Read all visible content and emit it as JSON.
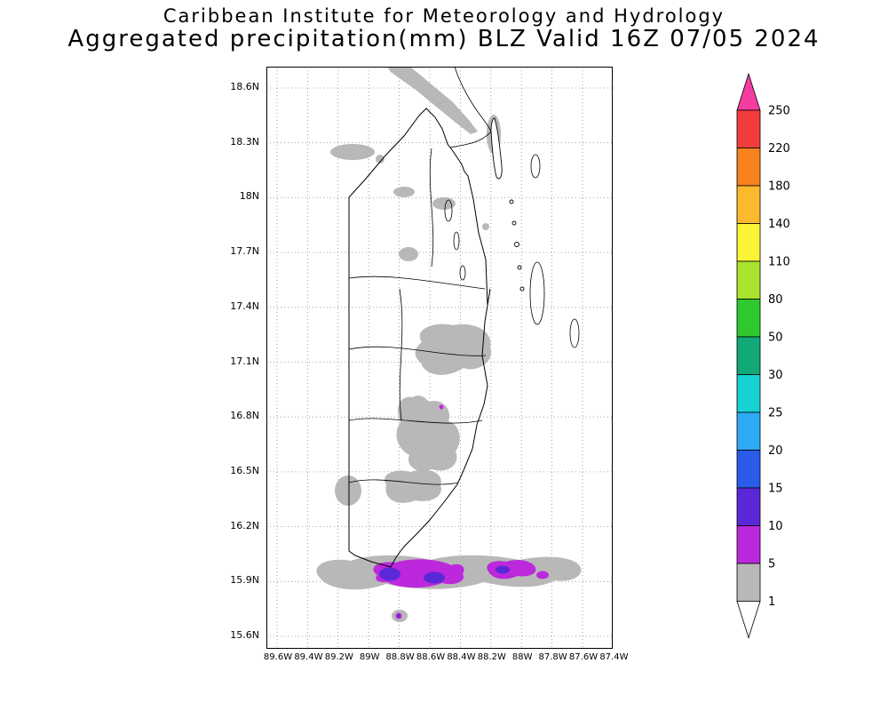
{
  "title": {
    "line1": "Caribbean Institute for Meteorology and Hydrology",
    "line2": "Aggregated precipitation(mm) BLZ Valid 16Z 07/05 2024"
  },
  "map": {
    "lat_labels": [
      "18.6N",
      "18.3N",
      "18N",
      "17.7N",
      "17.4N",
      "17.1N",
      "16.8N",
      "16.5N",
      "16.2N",
      "15.9N",
      "15.6N"
    ],
    "lon_labels": [
      "89.6W",
      "89.4W",
      "89.2W",
      "89W",
      "88.8W",
      "88.6W",
      "88.4W",
      "88.2W",
      "88W",
      "87.8W",
      "87.6W",
      "87.4W"
    ]
  },
  "colorbar": {
    "labels": [
      "250",
      "220",
      "180",
      "140",
      "110",
      "80",
      "50",
      "30",
      "25",
      "20",
      "15",
      "10",
      "5",
      "1"
    ],
    "colors": [
      "#F23C3C",
      "#F8821E",
      "#FCB92E",
      "#FBF337",
      "#A8E32E",
      "#2FC82F",
      "#12A878",
      "#17D2D2",
      "#2EA9F5",
      "#2A5CE8",
      "#5A28D7",
      "#BC28DC",
      "#B8B8B8"
    ],
    "over_color": "#F53CA0",
    "under_color": "#FFFFFF"
  }
}
